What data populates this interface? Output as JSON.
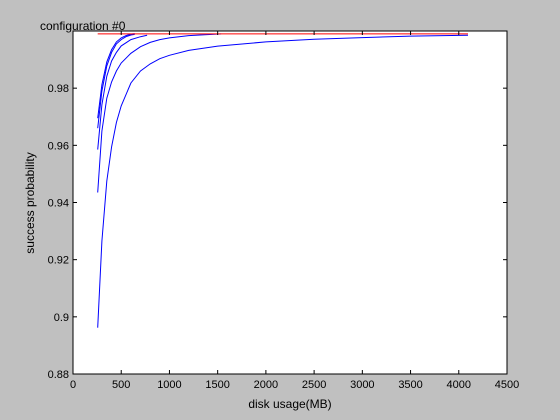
{
  "chart_data": {
    "type": "line",
    "title": "configuration #0",
    "xlabel": "disk usage(MB)",
    "ylabel": "success probability",
    "xlim": [
      0,
      4500
    ],
    "ylim": [
      0.88,
      1.0
    ],
    "xticks": [
      0,
      500,
      1000,
      1500,
      2000,
      2500,
      3000,
      3500,
      4000,
      4500
    ],
    "yticks": [
      0.88,
      0.9,
      0.92,
      0.94,
      0.96,
      0.98
    ],
    "ytick_labels": [
      "0.88",
      "0.9",
      "0.92",
      "0.94",
      "0.96",
      "0.98"
    ],
    "xtick_labels": [
      "0",
      "500",
      "1000",
      "1500",
      "2000",
      "2500",
      "3000",
      "3500",
      "4000",
      "4500"
    ],
    "grid": false,
    "background": "#c0c0c0",
    "plot_background": "#ffffff",
    "series": [
      {
        "color": "#0000ff",
        "x": [
          256,
          300,
          350,
          400,
          450,
          500,
          600,
          700,
          800,
          900,
          1000,
          1200,
          1500,
          2000,
          2500,
          3000,
          3500,
          4096
        ],
        "y": [
          0.8962,
          0.9265,
          0.9475,
          0.9595,
          0.968,
          0.9738,
          0.9818,
          0.986,
          0.9885,
          0.9903,
          0.9915,
          0.9932,
          0.9947,
          0.9962,
          0.9971,
          0.9977,
          0.9982,
          0.9985
        ]
      },
      {
        "color": "#0000ff",
        "x": [
          256,
          300,
          350,
          400,
          450,
          500,
          600,
          700,
          800,
          900,
          1000,
          1200,
          1536
        ],
        "y": [
          0.9435,
          0.965,
          0.9765,
          0.9822,
          0.986,
          0.9888,
          0.9922,
          0.9945,
          0.996,
          0.997,
          0.9976,
          0.9984,
          0.999
        ]
      },
      {
        "color": "#0000ff",
        "x": [
          256,
          300,
          350,
          400,
          450,
          500,
          600,
          700,
          768
        ],
        "y": [
          0.9585,
          0.9742,
          0.9842,
          0.9895,
          0.9925,
          0.9948,
          0.997,
          0.998,
          0.9985
        ]
      },
      {
        "color": "#0000ff",
        "x": [
          256,
          300,
          350,
          400,
          450,
          500,
          550,
          600,
          640
        ],
        "y": [
          0.966,
          0.979,
          0.9878,
          0.9925,
          0.9955,
          0.997,
          0.998,
          0.9986,
          0.9988
        ]
      },
      {
        "color": "#0000ff",
        "x": [
          256,
          300,
          350,
          400,
          450,
          500,
          550,
          600,
          640
        ],
        "y": [
          0.9695,
          0.9812,
          0.9892,
          0.9935,
          0.9962,
          0.9976,
          0.9984,
          0.9989,
          0.9991
        ]
      },
      {
        "color": "#ff0000",
        "x": [
          256,
          4096
        ],
        "y": [
          0.999,
          0.999
        ]
      }
    ]
  }
}
